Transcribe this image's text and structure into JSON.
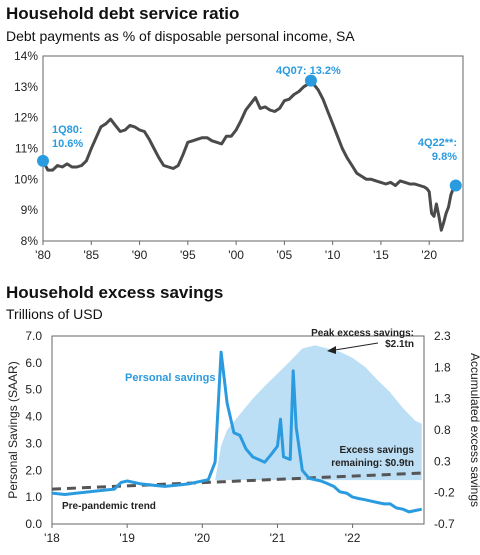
{
  "chart_data": [
    {
      "type": "line",
      "title": "Household debt service ratio",
      "subtitle": "Debt payments as % of disposable personal income, SA",
      "x_ticks": [
        "'80",
        "'85",
        "'90",
        "'95",
        "'00",
        "'05",
        "'10",
        "'15",
        "'20"
      ],
      "y_ticks": [
        "8%",
        "9%",
        "10%",
        "11%",
        "12%",
        "13%",
        "14%"
      ],
      "ylim": [
        8,
        14
      ],
      "xlim": [
        1980,
        2023.5
      ],
      "series": [
        {
          "color": "#4a4a4a",
          "points": [
            [
              1980.0,
              10.6
            ],
            [
              1980.5,
              10.3
            ],
            [
              1981.0,
              10.3
            ],
            [
              1981.5,
              10.45
            ],
            [
              1982.0,
              10.4
            ],
            [
              1982.5,
              10.5
            ],
            [
              1983.0,
              10.4
            ],
            [
              1983.5,
              10.4
            ],
            [
              1984.0,
              10.45
            ],
            [
              1984.5,
              10.6
            ],
            [
              1985.0,
              11.0
            ],
            [
              1985.5,
              11.35
            ],
            [
              1986.0,
              11.7
            ],
            [
              1986.5,
              11.8
            ],
            [
              1987.0,
              11.95
            ],
            [
              1987.5,
              11.75
            ],
            [
              1988.0,
              11.55
            ],
            [
              1988.5,
              11.6
            ],
            [
              1989.0,
              11.75
            ],
            [
              1989.5,
              11.7
            ],
            [
              1990.0,
              11.6
            ],
            [
              1990.5,
              11.55
            ],
            [
              1991.0,
              11.3
            ],
            [
              1991.5,
              11.0
            ],
            [
              1992.0,
              10.7
            ],
            [
              1992.5,
              10.45
            ],
            [
              1993.0,
              10.4
            ],
            [
              1993.5,
              10.35
            ],
            [
              1994.0,
              10.45
            ],
            [
              1994.5,
              10.8
            ],
            [
              1995.0,
              11.2
            ],
            [
              1995.5,
              11.25
            ],
            [
              1996.0,
              11.3
            ],
            [
              1996.5,
              11.35
            ],
            [
              1997.0,
              11.35
            ],
            [
              1997.5,
              11.25
            ],
            [
              1998.0,
              11.2
            ],
            [
              1998.5,
              11.15
            ],
            [
              1999.0,
              11.4
            ],
            [
              1999.5,
              11.4
            ],
            [
              2000.0,
              11.6
            ],
            [
              2000.5,
              11.9
            ],
            [
              2001.0,
              12.25
            ],
            [
              2001.5,
              12.45
            ],
            [
              2002.0,
              12.65
            ],
            [
              2002.5,
              12.3
            ],
            [
              2003.0,
              12.35
            ],
            [
              2003.5,
              12.25
            ],
            [
              2004.0,
              12.2
            ],
            [
              2004.5,
              12.3
            ],
            [
              2005.0,
              12.55
            ],
            [
              2005.5,
              12.6
            ],
            [
              2006.0,
              12.75
            ],
            [
              2006.5,
              12.85
            ],
            [
              2007.0,
              13.0
            ],
            [
              2007.5,
              13.1
            ],
            [
              2007.75,
              13.2
            ],
            [
              2008.5,
              12.9
            ],
            [
              2009.0,
              12.6
            ],
            [
              2009.5,
              12.2
            ],
            [
              2010.0,
              11.8
            ],
            [
              2010.5,
              11.4
            ],
            [
              2011.0,
              11.0
            ],
            [
              2011.5,
              10.7
            ],
            [
              2012.0,
              10.45
            ],
            [
              2012.5,
              10.2
            ],
            [
              2013.0,
              10.1
            ],
            [
              2013.5,
              10.0
            ],
            [
              2014.0,
              10.0
            ],
            [
              2014.5,
              9.95
            ],
            [
              2015.0,
              9.9
            ],
            [
              2015.5,
              9.85
            ],
            [
              2016.0,
              9.9
            ],
            [
              2016.5,
              9.8
            ],
            [
              2017.0,
              9.95
            ],
            [
              2017.5,
              9.9
            ],
            [
              2018.0,
              9.85
            ],
            [
              2018.5,
              9.85
            ],
            [
              2019.0,
              9.8
            ],
            [
              2019.5,
              9.75
            ],
            [
              2019.75,
              9.7
            ],
            [
              2020.0,
              9.6
            ],
            [
              2020.25,
              8.9
            ],
            [
              2020.5,
              8.8
            ],
            [
              2020.75,
              9.2
            ],
            [
              2021.0,
              8.8
            ],
            [
              2021.25,
              8.35
            ],
            [
              2021.5,
              8.6
            ],
            [
              2021.75,
              8.9
            ],
            [
              2022.0,
              9.1
            ],
            [
              2022.25,
              9.5
            ],
            [
              2022.5,
              9.7
            ],
            [
              2022.75,
              9.8
            ]
          ]
        }
      ],
      "markers": [
        {
          "x": 1980.0,
          "y": 10.6,
          "label_line1": "1Q80:",
          "label_line2": "10.6%"
        },
        {
          "x": 2007.75,
          "y": 13.2,
          "label_line1": "4Q07: 13.2%",
          "label_line2": ""
        },
        {
          "x": 2022.75,
          "y": 9.8,
          "label_line1": "4Q22**:",
          "label_line2": "9.8%"
        }
      ]
    },
    {
      "type": "line",
      "title": "Household excess savings",
      "subtitle": "Trillions of USD",
      "x_ticks": [
        "'18",
        "'19",
        "'20",
        "'21",
        "'22"
      ],
      "xlim": [
        2018.0,
        2022.95
      ],
      "y_left_ticks": [
        "0.0",
        "1.0",
        "2.0",
        "3.0",
        "4.0",
        "5.0",
        "6.0",
        "7.0"
      ],
      "y_left_lim": [
        0,
        7
      ],
      "y_left_label": "Personal Savings (SAAR)",
      "y_right_ticks": [
        "-0.7",
        "-0.2",
        "0.3",
        "0.8",
        "1.3",
        "1.8",
        "2.3"
      ],
      "y_right_lim": [
        -0.7,
        2.3
      ],
      "y_right_label": "Accumulated excess savings",
      "series": [
        {
          "name": "Personal savings",
          "axis": "left",
          "color": "#2b9be0",
          "points": [
            [
              2018.0,
              1.15
            ],
            [
              2018.17,
              1.1
            ],
            [
              2018.33,
              1.15
            ],
            [
              2018.5,
              1.2
            ],
            [
              2018.67,
              1.25
            ],
            [
              2018.83,
              1.3
            ],
            [
              2018.92,
              1.55
            ],
            [
              2019.0,
              1.6
            ],
            [
              2019.17,
              1.5
            ],
            [
              2019.33,
              1.45
            ],
            [
              2019.5,
              1.4
            ],
            [
              2019.67,
              1.45
            ],
            [
              2019.83,
              1.5
            ],
            [
              2020.0,
              1.6
            ],
            [
              2020.08,
              1.65
            ],
            [
              2020.17,
              2.3
            ],
            [
              2020.25,
              6.4
            ],
            [
              2020.33,
              4.5
            ],
            [
              2020.42,
              3.4
            ],
            [
              2020.5,
              3.3
            ],
            [
              2020.58,
              2.8
            ],
            [
              2020.67,
              2.5
            ],
            [
              2020.75,
              2.4
            ],
            [
              2020.83,
              2.3
            ],
            [
              2020.92,
              2.6
            ],
            [
              2021.0,
              2.9
            ],
            [
              2021.04,
              3.9
            ],
            [
              2021.08,
              2.5
            ],
            [
              2021.17,
              2.4
            ],
            [
              2021.21,
              5.7
            ],
            [
              2021.25,
              3.6
            ],
            [
              2021.33,
              2.0
            ],
            [
              2021.42,
              1.7
            ],
            [
              2021.5,
              1.65
            ],
            [
              2021.58,
              1.6
            ],
            [
              2021.67,
              1.5
            ],
            [
              2021.75,
              1.4
            ],
            [
              2021.83,
              1.2
            ],
            [
              2021.92,
              1.15
            ],
            [
              2022.0,
              1.0
            ],
            [
              2022.08,
              0.95
            ],
            [
              2022.17,
              0.9
            ],
            [
              2022.25,
              0.85
            ],
            [
              2022.33,
              0.8
            ],
            [
              2022.42,
              0.75
            ],
            [
              2022.5,
              0.75
            ],
            [
              2022.58,
              0.6
            ],
            [
              2022.67,
              0.55
            ],
            [
              2022.75,
              0.45
            ],
            [
              2022.83,
              0.5
            ],
            [
              2022.92,
              0.55
            ]
          ]
        },
        {
          "name": "Pre-pandemic trend",
          "axis": "left",
          "color": "#555555",
          "dashed": true,
          "points": [
            [
              2018.0,
              1.3
            ],
            [
              2022.95,
              1.9
            ]
          ]
        },
        {
          "name": "Accumulated excess savings",
          "axis": "right",
          "color": "#bcdff5",
          "area": true,
          "points": [
            [
              2020.17,
              0.0
            ],
            [
              2020.25,
              0.55
            ],
            [
              2020.33,
              0.8
            ],
            [
              2020.5,
              1.05
            ],
            [
              2020.67,
              1.3
            ],
            [
              2020.83,
              1.5
            ],
            [
              2021.0,
              1.7
            ],
            [
              2021.17,
              1.9
            ],
            [
              2021.33,
              2.1
            ],
            [
              2021.5,
              2.15
            ],
            [
              2021.67,
              2.1
            ],
            [
              2021.83,
              2.05
            ],
            [
              2022.0,
              1.95
            ],
            [
              2022.17,
              1.8
            ],
            [
              2022.33,
              1.6
            ],
            [
              2022.5,
              1.4
            ],
            [
              2022.67,
              1.15
            ],
            [
              2022.83,
              0.95
            ],
            [
              2022.92,
              0.9
            ]
          ]
        }
      ],
      "annotations": {
        "peak_line1": "Peak excess savings:",
        "peak_line2": "$2.1tn",
        "remaining_line1": "Excess savings",
        "remaining_line2": "remaining: $0.9tn",
        "personal_savings_label": "Personal savings",
        "trend_label": "Pre-pandemic trend"
      }
    }
  ]
}
